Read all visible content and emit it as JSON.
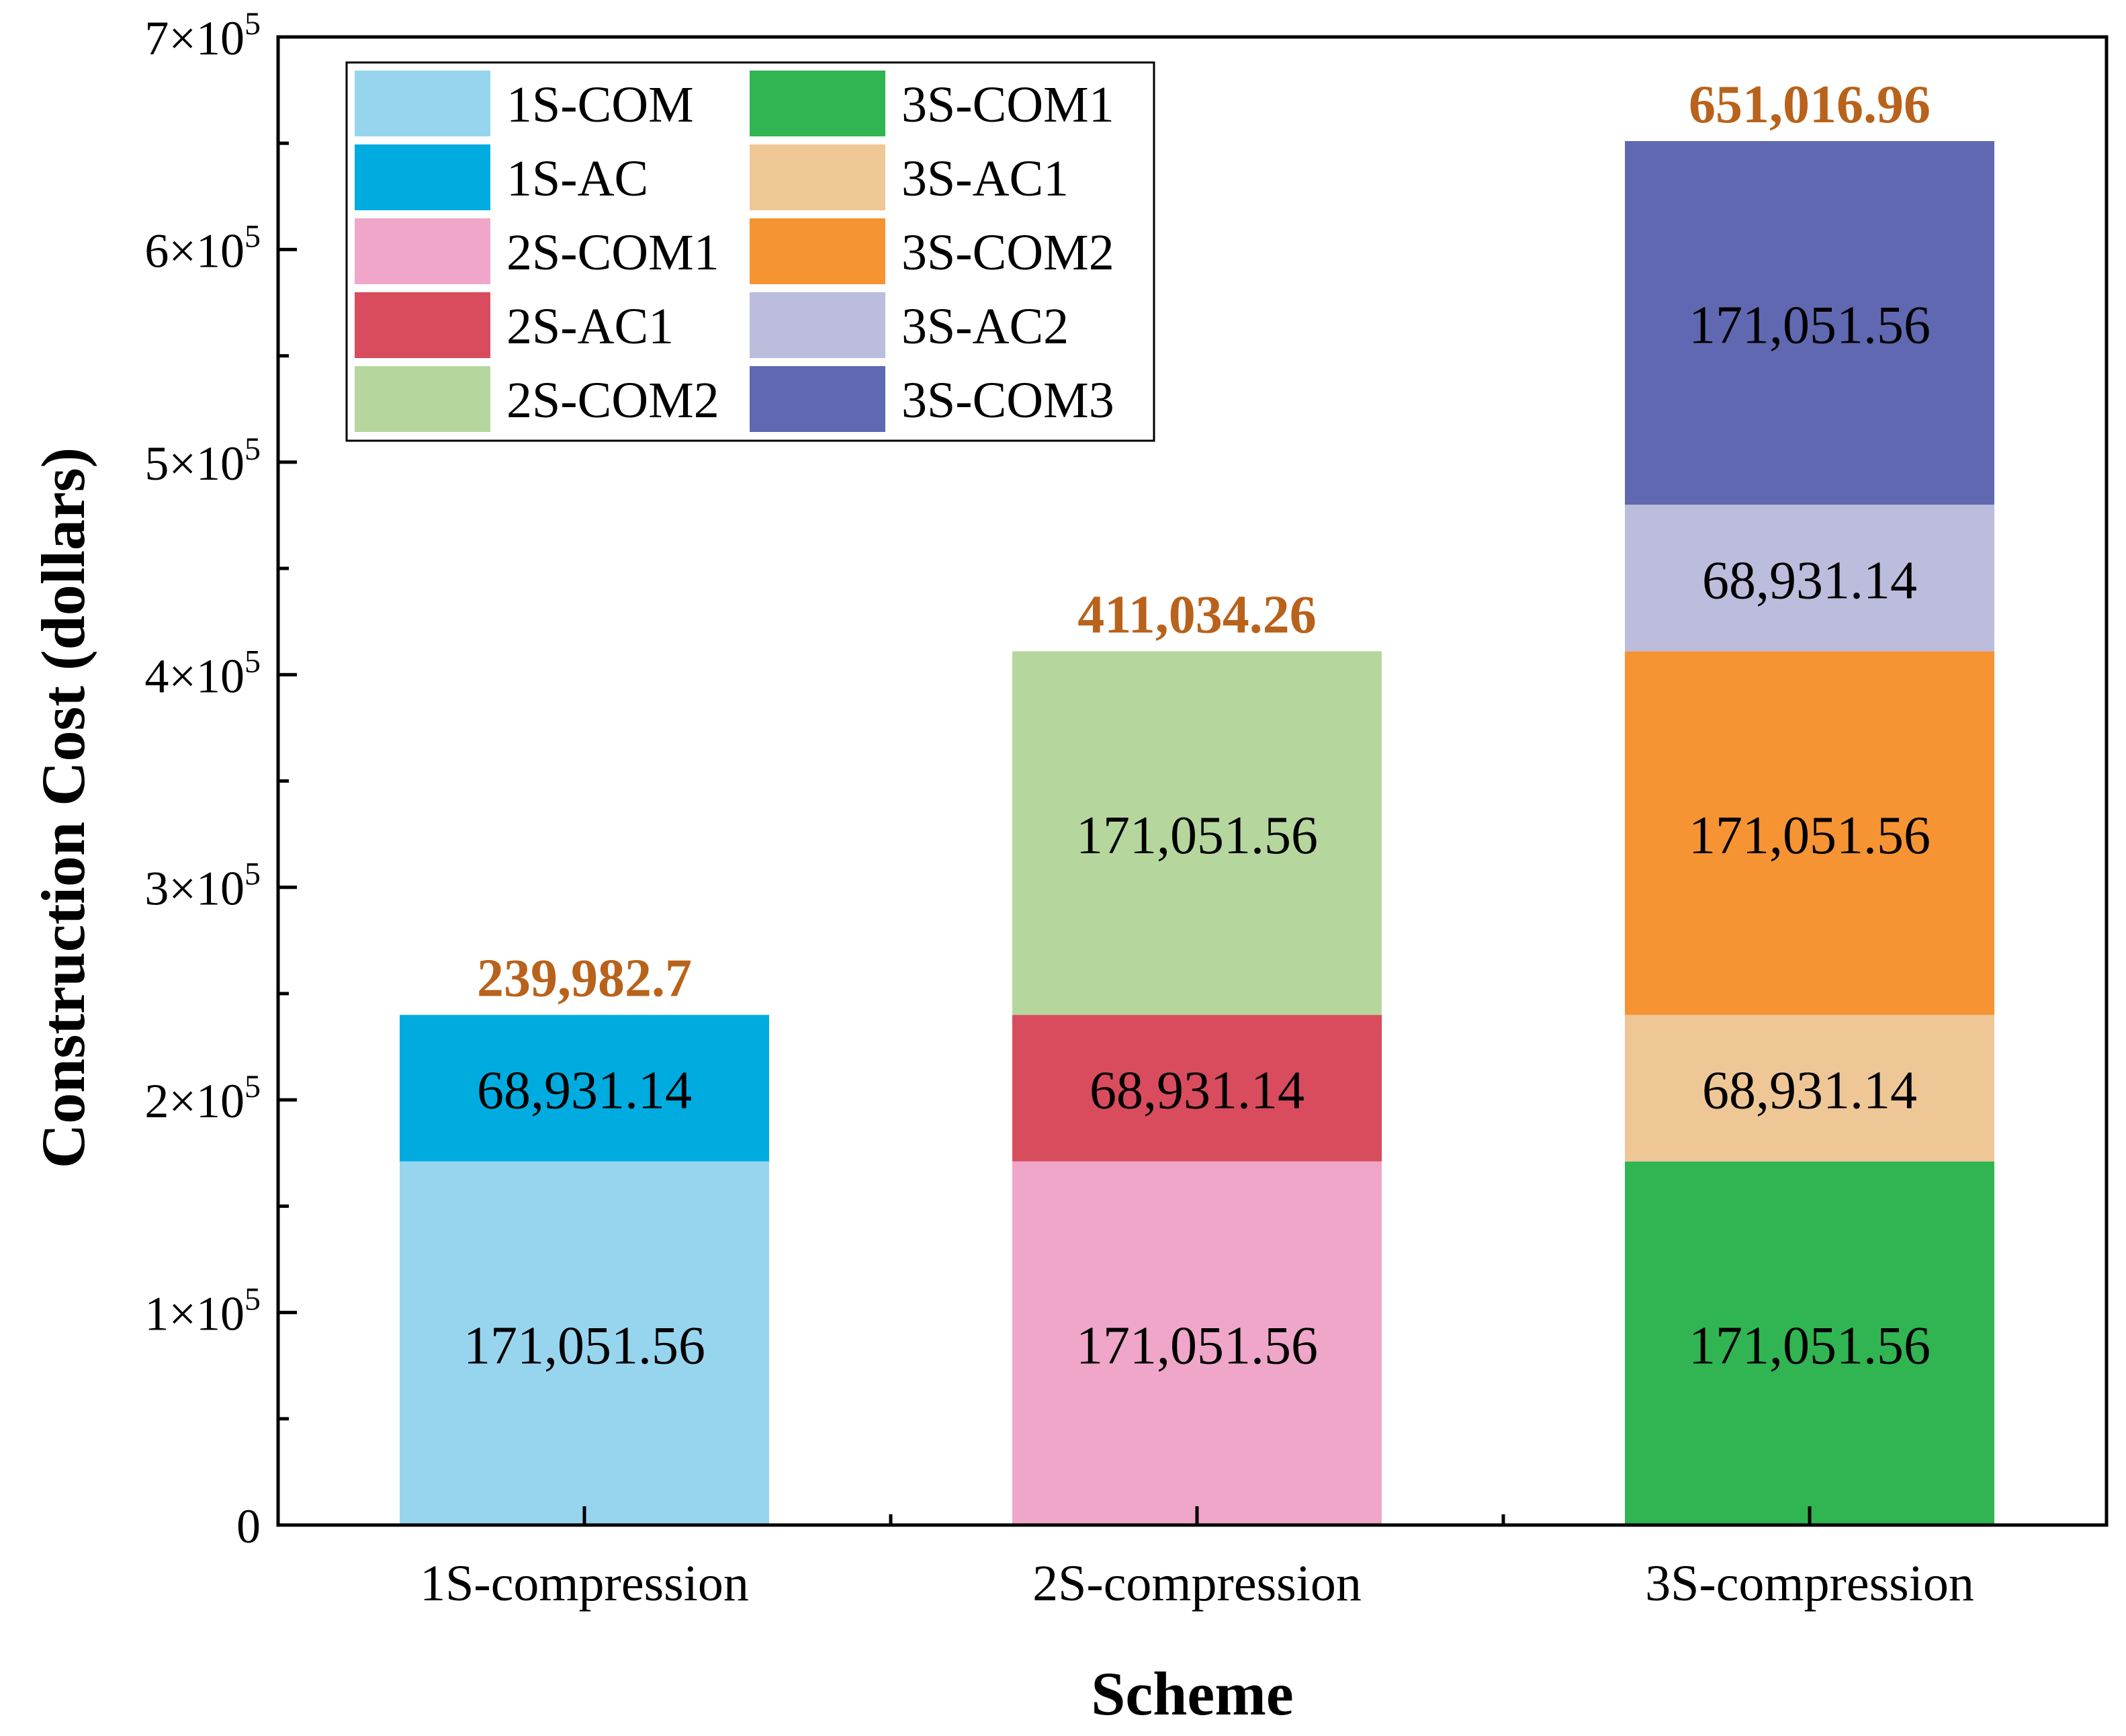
{
  "chart_data": {
    "type": "bar",
    "stacked": true,
    "title": "",
    "xlabel": "Scheme",
    "ylabel": "Construction Cost (dollars)",
    "ylim": [
      0,
      700000
    ],
    "y_ticks": [
      {
        "value": 0,
        "base": "0",
        "exp": ""
      },
      {
        "value": 100000,
        "base": "1×10",
        "exp": "5"
      },
      {
        "value": 200000,
        "base": "2×10",
        "exp": "5"
      },
      {
        "value": 300000,
        "base": "3×10",
        "exp": "5"
      },
      {
        "value": 400000,
        "base": "4×10",
        "exp": "5"
      },
      {
        "value": 500000,
        "base": "5×10",
        "exp": "5"
      },
      {
        "value": 600000,
        "base": "6×10",
        "exp": "5"
      },
      {
        "value": 700000,
        "base": "7×10",
        "exp": "5"
      }
    ],
    "categories": [
      "1S-compression",
      "2S-compression",
      "3S-compression"
    ],
    "stacks": [
      {
        "category": "1S-compression",
        "total_label": "239,982.7",
        "segments": [
          {
            "series": "1S-COM",
            "value": 171051.56,
            "label": "171,051.56"
          },
          {
            "series": "1S-AC",
            "value": 68931.14,
            "label": "68,931.14"
          }
        ]
      },
      {
        "category": "2S-compression",
        "total_label": "411,034.26",
        "segments": [
          {
            "series": "2S-COM1",
            "value": 171051.56,
            "label": "171,051.56"
          },
          {
            "series": "2S-AC1",
            "value": 68931.14,
            "label": "68,931.14"
          },
          {
            "series": "2S-COM2",
            "value": 171051.56,
            "label": "171,051.56"
          }
        ]
      },
      {
        "category": "3S-compression",
        "total_label": "651,016.96",
        "segments": [
          {
            "series": "3S-COM1",
            "value": 171051.56,
            "label": "171,051.56"
          },
          {
            "series": "3S-AC1",
            "value": 68931.14,
            "label": "68,931.14"
          },
          {
            "series": "3S-COM2",
            "value": 171051.56,
            "label": "171,051.56"
          },
          {
            "series": "3S-AC2",
            "value": 68931.14,
            "label": "68,931.14"
          },
          {
            "series": "3S-COM3",
            "value": 171051.56,
            "label": "171,051.56"
          }
        ]
      }
    ],
    "legend": {
      "position": "top-left",
      "columns": 2,
      "items": [
        {
          "name": "1S-COM",
          "color": "#97d5ef"
        },
        {
          "name": "1S-AC",
          "color": "#00acdf"
        },
        {
          "name": "2S-COM1",
          "color": "#efa6c8"
        },
        {
          "name": "2S-AC1",
          "color": "#d84c5e"
        },
        {
          "name": "2S-COM2",
          "color": "#b5d79d"
        },
        {
          "name": "3S-COM1",
          "color": "#31b452"
        },
        {
          "name": "3S-AC1",
          "color": "#efc796"
        },
        {
          "name": "3S-COM2",
          "color": "#f69333"
        },
        {
          "name": "3S-AC2",
          "color": "#bcbcdd"
        },
        {
          "name": "3S-COM3",
          "color": "#6068b1"
        }
      ]
    },
    "colors": {
      "total_label": "#b8621b",
      "axis": "#000000",
      "segment_label": "#000000"
    },
    "grid": false
  }
}
